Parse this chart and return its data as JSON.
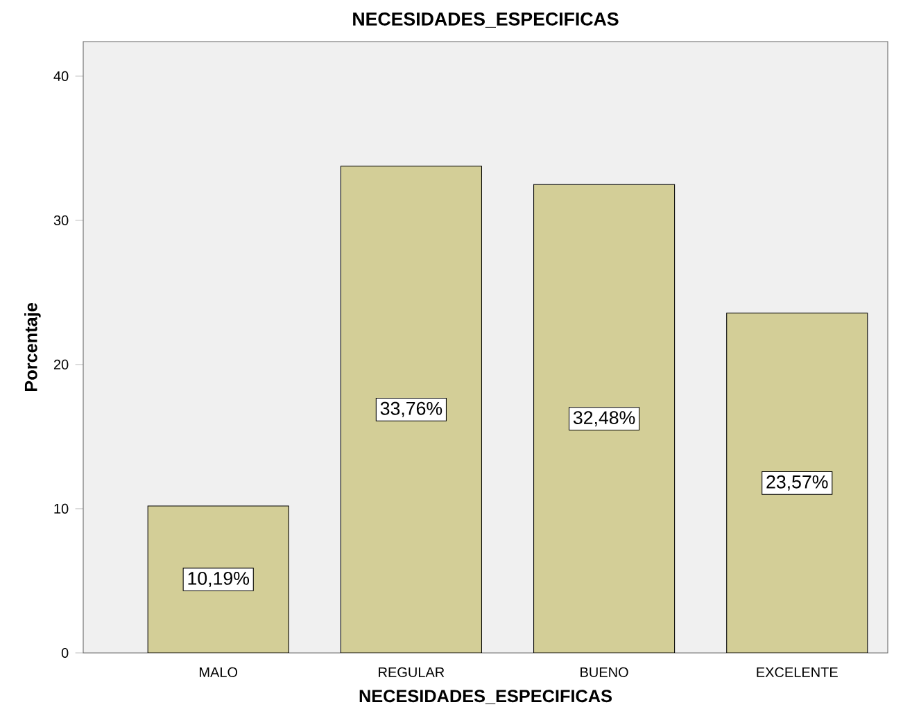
{
  "chart_data": {
    "type": "bar",
    "title": "NECESIDADES_ESPECIFICAS",
    "xlabel": "NECESIDADES_ESPECIFICAS",
    "ylabel": "Porcentaje",
    "categories": [
      "MALO",
      "REGULAR",
      "BUENO",
      "EXCELENTE"
    ],
    "values": [
      10.19,
      33.76,
      32.48,
      23.57
    ],
    "value_labels": [
      "10,19%",
      "33,76%",
      "32,48%",
      "23,57%"
    ],
    "color": "#d3ce97",
    "ylim": [
      0,
      42.4
    ],
    "yticks": [
      0,
      10,
      20,
      30,
      40
    ],
    "grid": false
  }
}
